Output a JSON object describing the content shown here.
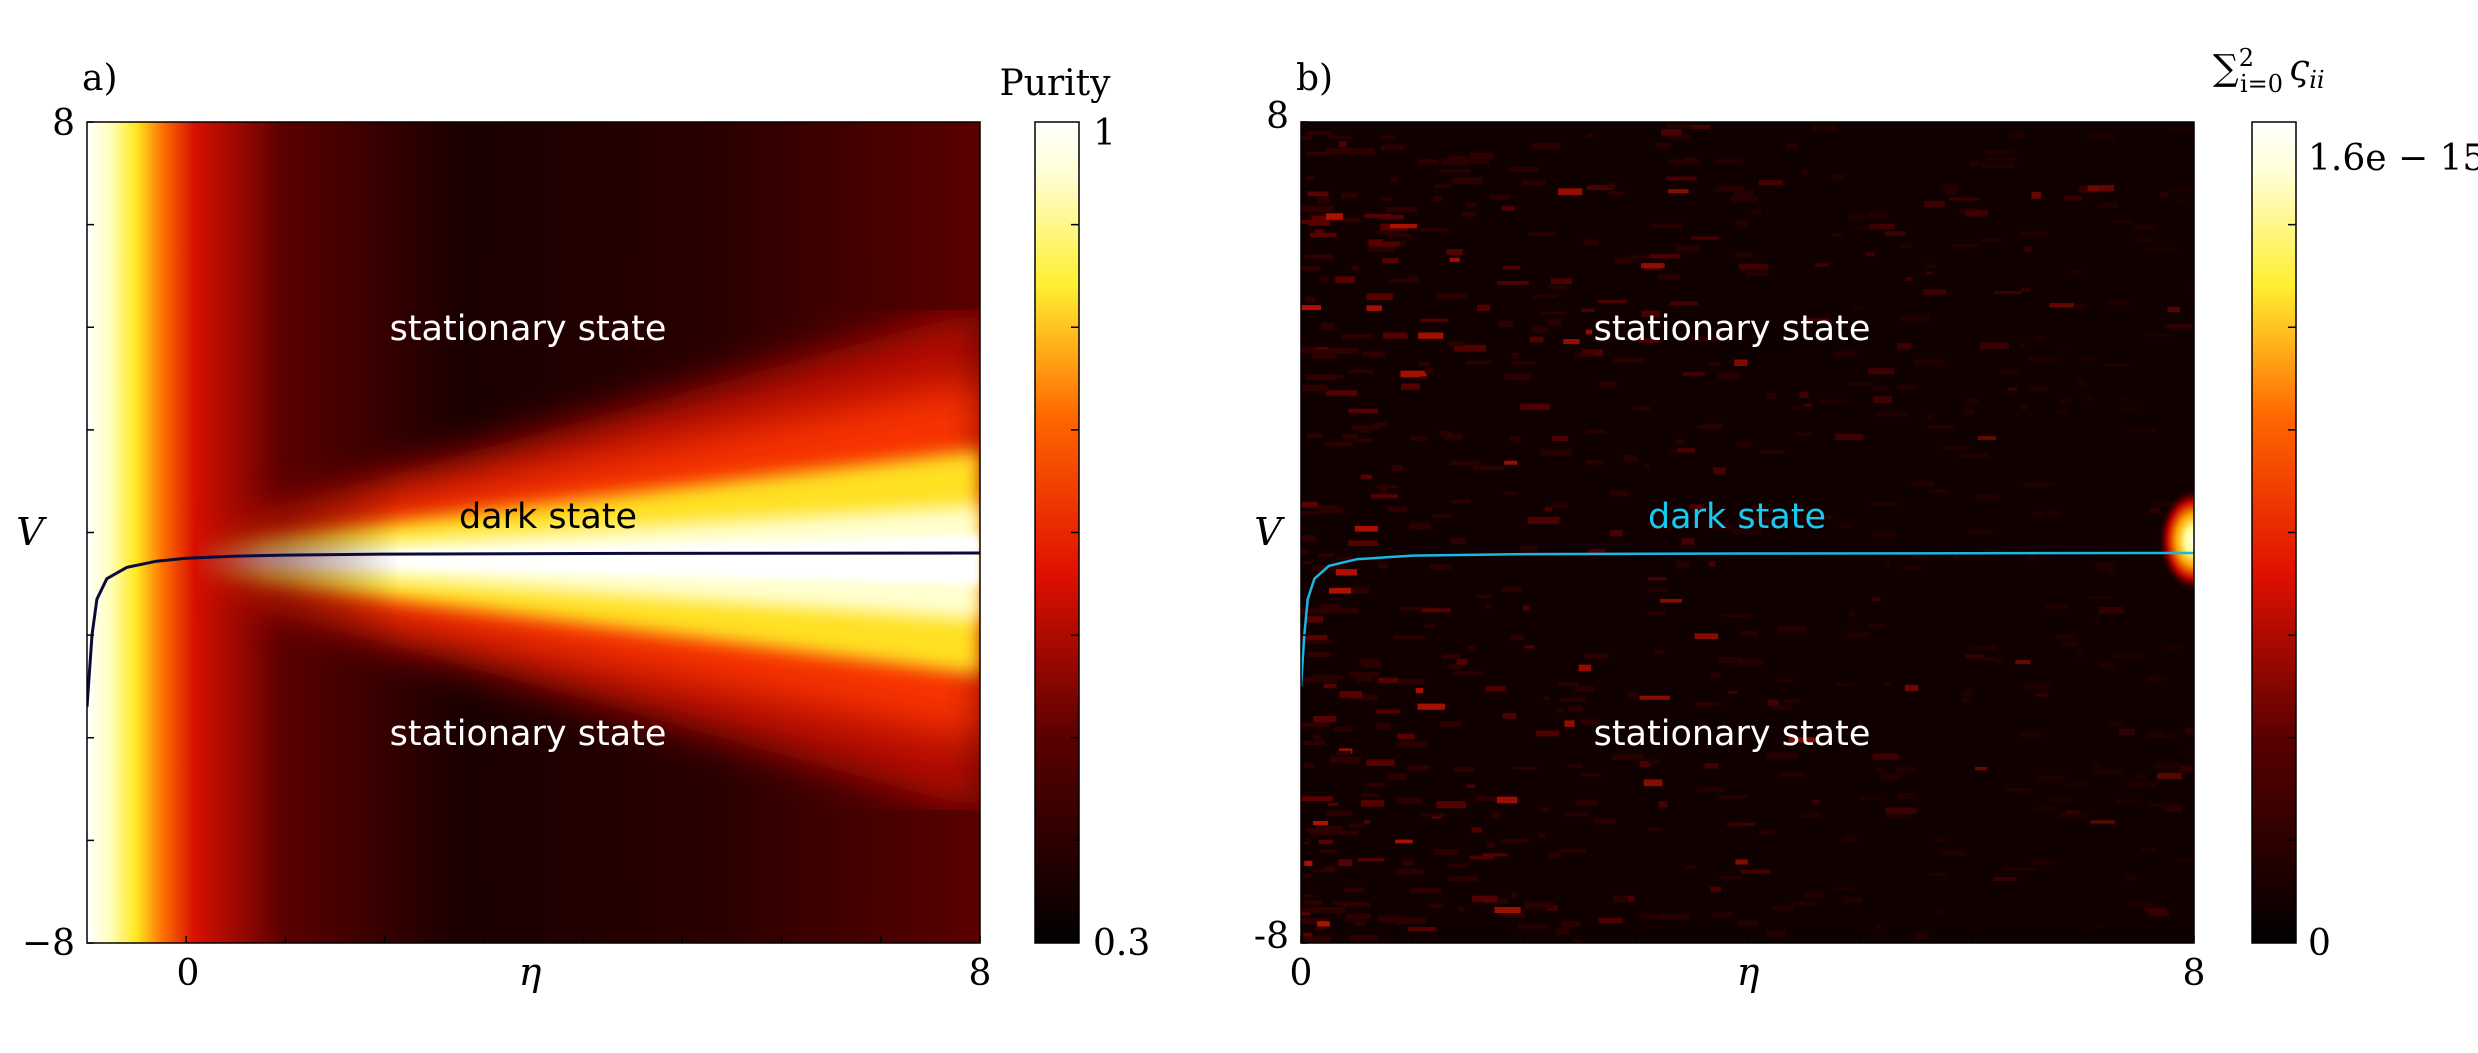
{
  "chart_data": [
    {
      "type": "heatmap",
      "panel_label": "a)",
      "xlabel": "η",
      "ylabel": "V",
      "xlim": [
        -1,
        8
      ],
      "ylim": [
        -8,
        8
      ],
      "x_tick_labels": [
        "0",
        "8"
      ],
      "y_tick_labels": [
        "8",
        "−8"
      ],
      "colorbar": {
        "label": "Purity",
        "min": 0.3,
        "max": 1,
        "min_label": "0.3",
        "max_label": "1",
        "colormap": "hot"
      },
      "regions": [
        "stationary state",
        "dark state",
        "stationary state"
      ],
      "dark_state_line": {
        "color": "#0b0b3b",
        "asymptote_V": -0.4,
        "points": [
          [
            -1.0,
            -3.4
          ],
          [
            -0.95,
            -2.0
          ],
          [
            -0.9,
            -1.3
          ],
          [
            -0.8,
            -0.9
          ],
          [
            -0.6,
            -0.68
          ],
          [
            -0.3,
            -0.56
          ],
          [
            0,
            -0.5
          ],
          [
            0.5,
            -0.46
          ],
          [
            1,
            -0.44
          ],
          [
            2,
            -0.42
          ],
          [
            4,
            -0.41
          ],
          [
            8,
            -0.4
          ]
        ]
      }
    },
    {
      "type": "heatmap",
      "panel_label": "b)",
      "xlabel": "η",
      "ylabel": "V",
      "xlim": [
        0,
        8
      ],
      "ylim": [
        -8,
        8
      ],
      "x_tick_labels": [
        "0",
        "8"
      ],
      "y_tick_labels": [
        "8",
        "-8"
      ],
      "colorbar": {
        "label": "∑",
        "label_sup": "2",
        "label_sub": "i=0",
        "label_term": "ς",
        "label_term_sub": "ii",
        "min": 0,
        "max": 1.6e-15,
        "min_label": "0",
        "max_label": "1.6e − 15",
        "colormap": "hot"
      },
      "regions": [
        "stationary state",
        "dark state",
        "stationary state"
      ],
      "dark_state_line": {
        "color": "#18b8e0",
        "asymptote_V": -0.4,
        "points": [
          [
            0.0,
            -3.0
          ],
          [
            0.03,
            -2.0
          ],
          [
            0.06,
            -1.3
          ],
          [
            0.12,
            -0.9
          ],
          [
            0.25,
            -0.65
          ],
          [
            0.5,
            -0.52
          ],
          [
            1,
            -0.45
          ],
          [
            2,
            -0.42
          ],
          [
            4,
            -0.41
          ],
          [
            8,
            -0.4
          ]
        ]
      },
      "hotspot": {
        "eta": 8,
        "V": -0.2
      }
    }
  ]
}
